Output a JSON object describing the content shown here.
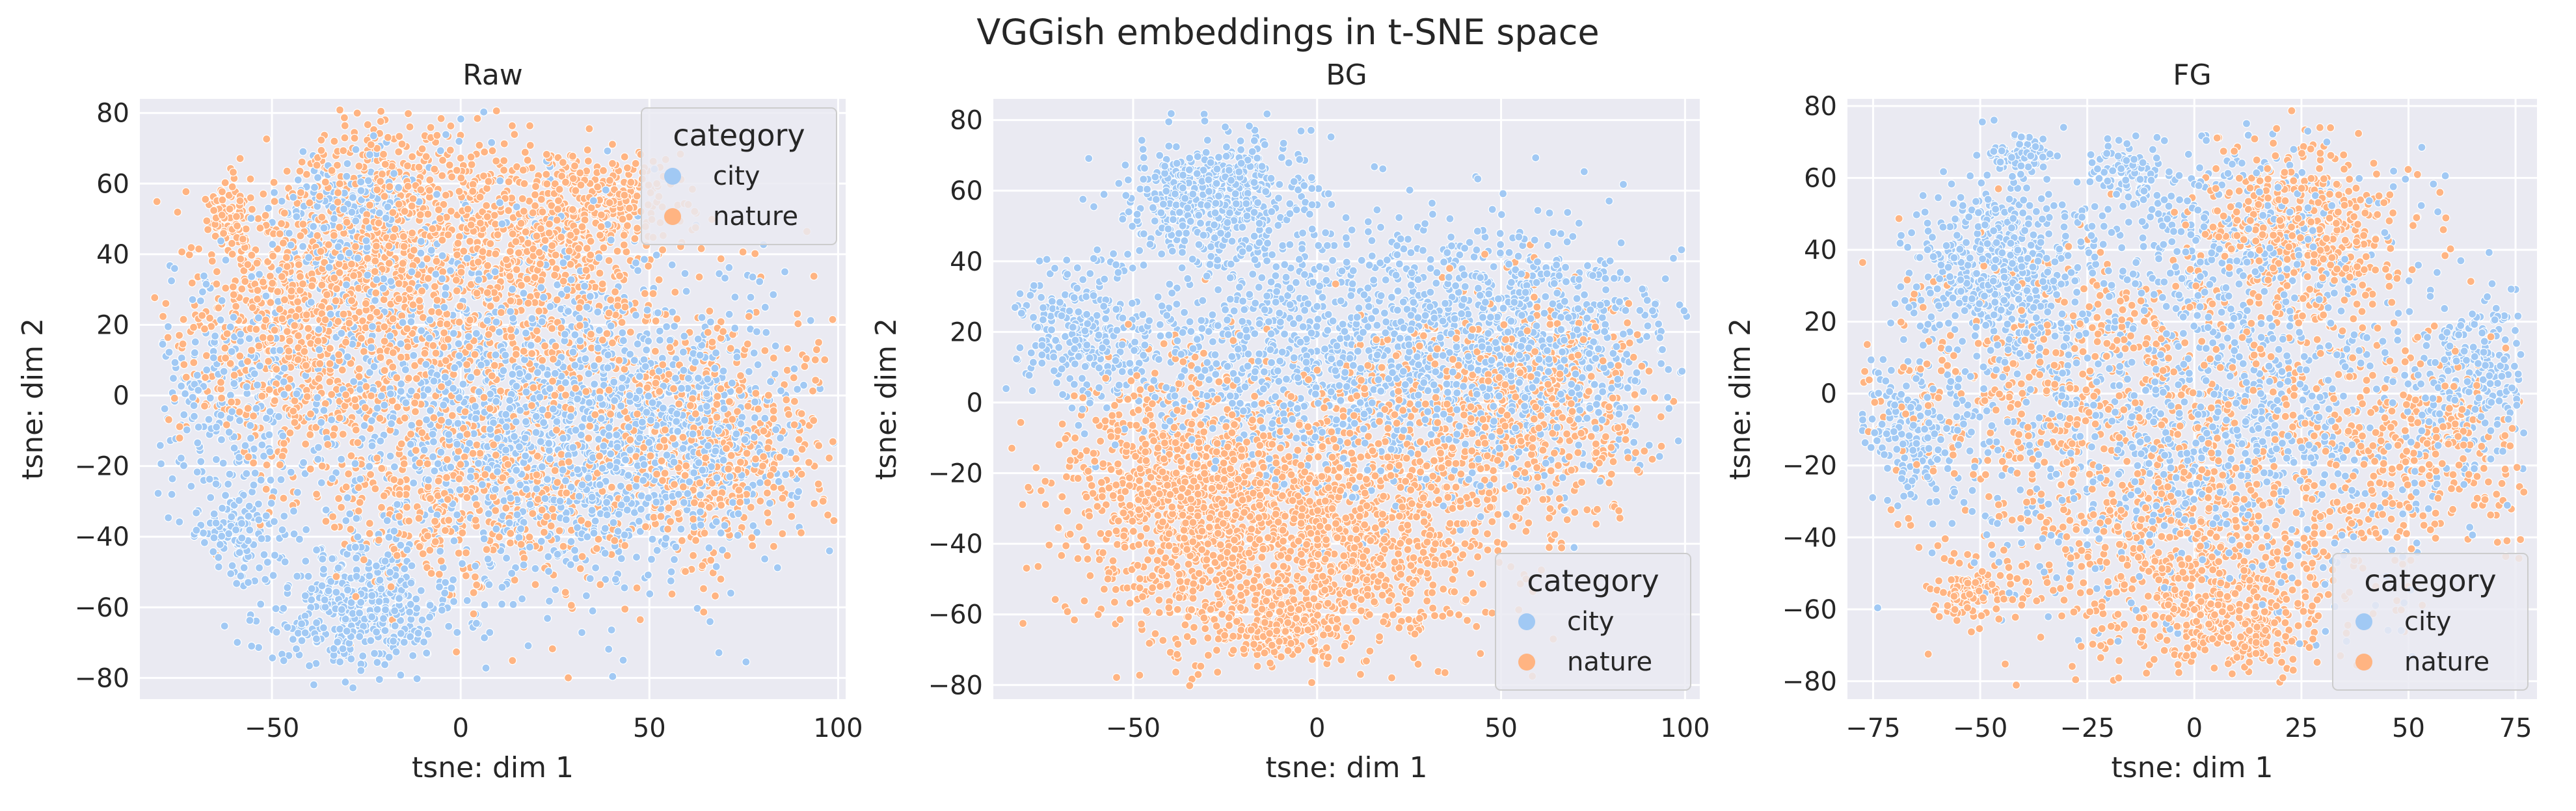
{
  "figure": {
    "title": "VGGish embeddings in t-SNE space",
    "colors": {
      "city": "#a1c9f4",
      "nature": "#ffb482",
      "bg": "#eaeaf2",
      "grid": "#ffffff"
    }
  },
  "chart_data": [
    {
      "type": "scatter",
      "title": "Raw",
      "xlabel": "tsne: dim 1",
      "ylabel": "tsne: dim 2",
      "xlim": [
        -85,
        102
      ],
      "ylim": [
        -86,
        84
      ],
      "xticks": [
        -50,
        0,
        50,
        100
      ],
      "yticks": [
        -80,
        -60,
        -40,
        -20,
        0,
        20,
        40,
        60,
        80
      ],
      "grid": true,
      "legend": {
        "title": "category",
        "placement": "top-right",
        "entries": [
          "city",
          "nature"
        ]
      },
      "series": [
        {
          "name": "city",
          "clusters": [
            {
              "cx": -28,
              "cy": -60,
              "sx": 12,
              "sy": 9,
              "n": 420
            },
            {
              "cx": -58,
              "cy": -40,
              "sx": 6,
              "sy": 7,
              "n": 120
            },
            {
              "cx": 25,
              "cy": -15,
              "sx": 25,
              "sy": 20,
              "n": 900
            },
            {
              "cx": 60,
              "cy": -10,
              "sx": 15,
              "sy": 18,
              "n": 400
            },
            {
              "cx": -30,
              "cy": 50,
              "sx": 10,
              "sy": 10,
              "n": 220
            },
            {
              "cx": 0,
              "cy": 10,
              "sx": 30,
              "sy": 25,
              "n": 700
            },
            {
              "cx": -60,
              "cy": -5,
              "sx": 10,
              "sy": 15,
              "n": 220
            }
          ]
        },
        {
          "name": "nature",
          "clusters": [
            {
              "cx": -62,
              "cy": 50,
              "sx": 3,
              "sy": 6,
              "n": 90
            },
            {
              "cx": -20,
              "cy": 45,
              "sx": 15,
              "sy": 18,
              "n": 700
            },
            {
              "cx": 20,
              "cy": 45,
              "sx": 15,
              "sy": 12,
              "n": 450
            },
            {
              "cx": 40,
              "cy": 57,
              "sx": 8,
              "sy": 6,
              "n": 150
            },
            {
              "cx": -45,
              "cy": 15,
              "sx": 15,
              "sy": 18,
              "n": 550
            },
            {
              "cx": 15,
              "cy": 0,
              "sx": 30,
              "sy": 25,
              "n": 800
            },
            {
              "cx": 70,
              "cy": -15,
              "sx": 15,
              "sy": 15,
              "n": 450
            },
            {
              "cx": 5,
              "cy": -30,
              "sx": 20,
              "sy": 12,
              "n": 300
            }
          ]
        }
      ]
    },
    {
      "type": "scatter",
      "title": "BG",
      "xlabel": "tsne: dim 1",
      "ylabel": "tsne: dim 2",
      "xlim": [
        -88,
        104
      ],
      "ylim": [
        -84,
        86
      ],
      "xticks": [
        -50,
        0,
        50,
        100
      ],
      "yticks": [
        -80,
        -60,
        -40,
        -20,
        0,
        20,
        40,
        60,
        80
      ],
      "grid": true,
      "legend": {
        "title": "category",
        "placement": "bottom-right",
        "entries": [
          "city",
          "nature"
        ]
      },
      "series": [
        {
          "name": "city",
          "clusters": [
            {
              "cx": -28,
              "cy": 58,
              "sx": 12,
              "sy": 9,
              "n": 500
            },
            {
              "cx": 25,
              "cy": 15,
              "sx": 30,
              "sy": 20,
              "n": 1100
            },
            {
              "cx": 60,
              "cy": 15,
              "sx": 18,
              "sy": 15,
              "n": 500
            },
            {
              "cx": -65,
              "cy": 20,
              "sx": 10,
              "sy": 10,
              "n": 250
            },
            {
              "cx": -20,
              "cy": 10,
              "sx": 20,
              "sy": 15,
              "n": 400
            }
          ]
        },
        {
          "name": "nature",
          "clusters": [
            {
              "cx": -35,
              "cy": -25,
              "sx": 18,
              "sy": 18,
              "n": 1000
            },
            {
              "cx": 5,
              "cy": -40,
              "sx": 25,
              "sy": 15,
              "n": 900
            },
            {
              "cx": -10,
              "cy": -62,
              "sx": 12,
              "sy": 6,
              "n": 250
            },
            {
              "cx": 60,
              "cy": 0,
              "sx": 15,
              "sy": 15,
              "n": 450
            },
            {
              "cx": 25,
              "cy": -10,
              "sx": 20,
              "sy": 15,
              "n": 400
            }
          ]
        }
      ]
    },
    {
      "type": "scatter",
      "title": "FG",
      "xlabel": "tsne: dim 1",
      "ylabel": "tsne: dim 2",
      "xlim": [
        -81,
        80
      ],
      "ylim": [
        -85,
        82
      ],
      "xticks": [
        -75,
        -50,
        -25,
        0,
        25,
        50,
        75
      ],
      "yticks": [
        -80,
        -60,
        -40,
        -20,
        0,
        20,
        40,
        60,
        80
      ],
      "grid": true,
      "legend": {
        "title": "category",
        "placement": "bottom-right",
        "entries": [
          "city",
          "nature"
        ]
      },
      "series": [
        {
          "name": "city",
          "clusters": [
            {
              "cx": -45,
              "cy": 35,
              "sx": 10,
              "sy": 12,
              "n": 550
            },
            {
              "cx": -40,
              "cy": 67,
              "sx": 4,
              "sy": 3,
              "n": 60
            },
            {
              "cx": -15,
              "cy": 62,
              "sx": 4,
              "sy": 4,
              "n": 70
            },
            {
              "cx": 0,
              "cy": -10,
              "sx": 30,
              "sy": 25,
              "n": 1100
            },
            {
              "cx": 65,
              "cy": 5,
              "sx": 7,
              "sy": 12,
              "n": 250
            },
            {
              "cx": -65,
              "cy": -10,
              "sx": 8,
              "sy": 10,
              "n": 200
            },
            {
              "cx": 10,
              "cy": 45,
              "sx": 18,
              "sy": 14,
              "n": 350
            }
          ]
        },
        {
          "name": "nature",
          "clusters": [
            {
              "cx": 25,
              "cy": 45,
              "sx": 12,
              "sy": 12,
              "n": 500
            },
            {
              "cx": 0,
              "cy": -45,
              "sx": 20,
              "sy": 15,
              "n": 650
            },
            {
              "cx": -50,
              "cy": -55,
              "sx": 5,
              "sy": 4,
              "n": 100
            },
            {
              "cx": -20,
              "cy": 0,
              "sx": 30,
              "sy": 20,
              "n": 700
            },
            {
              "cx": 50,
              "cy": -15,
              "sx": 15,
              "sy": 15,
              "n": 350
            },
            {
              "cx": 10,
              "cy": -65,
              "sx": 10,
              "sy": 6,
              "n": 200
            }
          ]
        }
      ]
    }
  ]
}
